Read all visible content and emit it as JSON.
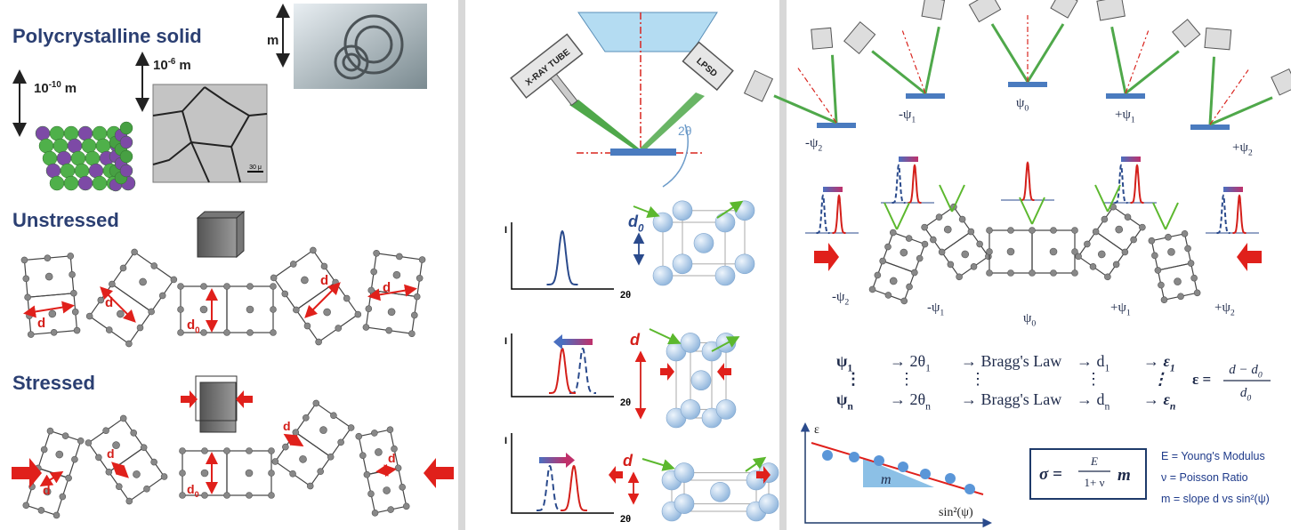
{
  "left": {
    "title": "Polycrystalline solid",
    "atomic_scale": {
      "base": "10",
      "sup": "-10",
      "unit": "m"
    },
    "grain_scale": {
      "base": "10",
      "sup": "-6",
      "unit": "m"
    },
    "part_scale": "m",
    "micrograph_bar": "30 μ",
    "unstressed": {
      "title": "Unstressed",
      "labels": [
        {
          "base": "d"
        },
        {
          "base": "d"
        },
        {
          "base": "d",
          "sub": "0"
        },
        {
          "base": "d"
        },
        {
          "base": "d"
        }
      ]
    },
    "stressed": {
      "title": "Stressed",
      "labels": [
        {
          "base": "d"
        },
        {
          "base": "d"
        },
        {
          "base": "d",
          "sub": "0"
        },
        {
          "base": "d"
        },
        {
          "base": "d"
        }
      ]
    }
  },
  "middle": {
    "tube": "X-RAY TUBE",
    "detector": "LPSD",
    "angle": "2θ",
    "plots": [
      {
        "y_axis": "I",
        "x_axis": "2θ",
        "spacing": {
          "base": "d",
          "sub": "0"
        }
      },
      {
        "y_axis": "I",
        "x_axis": "2θ",
        "spacing": {
          "base": "d"
        }
      },
      {
        "y_axis": "I",
        "x_axis": "2θ",
        "spacing": {
          "base": "d"
        }
      }
    ]
  },
  "right": {
    "tilt_labels": [
      {
        "base": "-ψ",
        "sub": "2"
      },
      {
        "base": "-ψ",
        "sub": "1"
      },
      {
        "base": "ψ",
        "sub": "0"
      },
      {
        "base": "+ψ",
        "sub": "1"
      },
      {
        "base": "+ψ",
        "sub": "2"
      }
    ],
    "grain_labels": [
      {
        "base": "-ψ",
        "sub": "2"
      },
      {
        "base": "-ψ",
        "sub": "1"
      },
      {
        "base": "ψ",
        "sub": "0"
      },
      {
        "base": "+ψ",
        "sub": "1"
      },
      {
        "base": "+ψ",
        "sub": "2"
      }
    ],
    "equations": [
      [
        {
          "base": "ψ",
          "sub": "1"
        },
        {
          "base": "→ 2θ",
          "sub": "1"
        },
        {
          "base": "→ Bragg's Law"
        },
        {
          "base": "→ d",
          "sub": "1"
        },
        {
          "base": "→ ε",
          "sub": "1"
        }
      ],
      [
        {
          "base": "⋮"
        },
        {
          "base": "⋮"
        },
        {
          "base": "⋮"
        },
        {
          "base": "⋮"
        },
        {
          "base": "⋮"
        }
      ],
      [
        {
          "base": "ψ",
          "sub": "n"
        },
        {
          "base": "→ 2θ",
          "sub": "n"
        },
        {
          "base": "→ Bragg's Law"
        },
        {
          "base": "→ d",
          "sub": "n"
        },
        {
          "base": "→ ε",
          "sub": "n"
        }
      ]
    ],
    "strain": {
      "lhs": "ε =",
      "numerator": {
        "base": "d − d",
        "sub": "0"
      },
      "denominator": {
        "base": "d",
        "sub": "0"
      }
    },
    "plot": {
      "y_axis": "ε",
      "x_axis": "sin²(ψ)",
      "slope": "m"
    },
    "stress": {
      "lhs": "σ =",
      "numerator": "E",
      "denominator": "1+ ν",
      "factor": "m"
    },
    "legend": [
      "E = Young's Modulus",
      "ν = Poisson Ratio",
      "m = slope d vs sin²(ψ)"
    ]
  }
}
